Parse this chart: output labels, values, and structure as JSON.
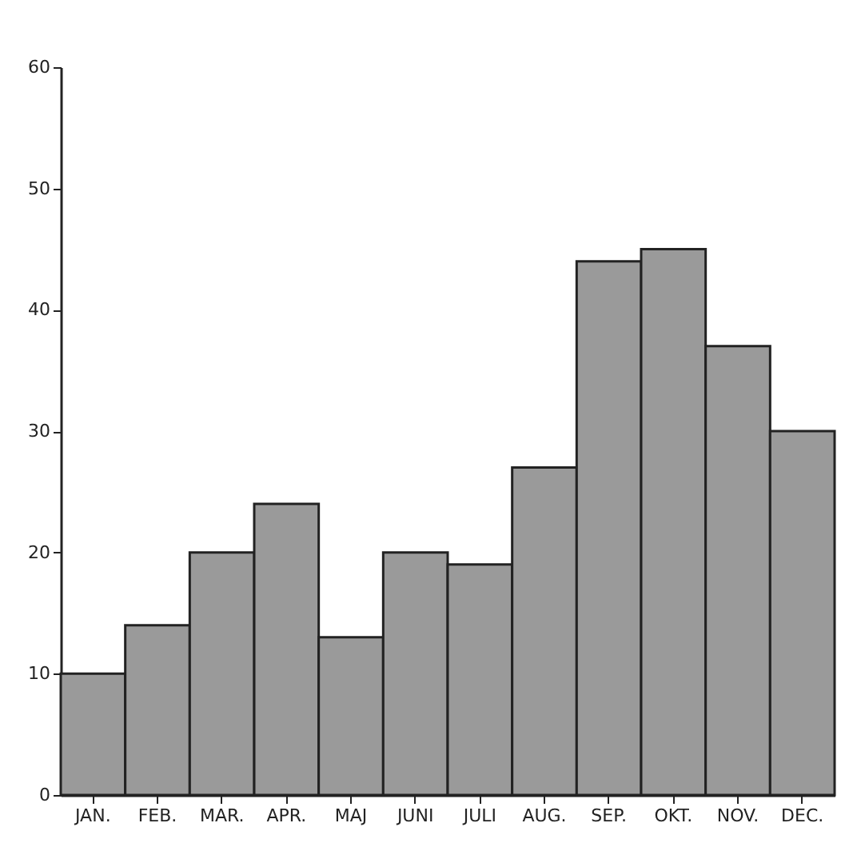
{
  "chart_data": {
    "type": "bar",
    "categories": [
      "JAN.",
      "FEB.",
      "MAR.",
      "APR.",
      "MAJ",
      "JUNI",
      "JULI",
      "AUG.",
      "SEP.",
      "OKT.",
      "NOV.",
      "DEC."
    ],
    "values": [
      10,
      14,
      20,
      24,
      13,
      20,
      19,
      27,
      44,
      45,
      37,
      30
    ],
    "color": "#9a9a9a",
    "ylim": [
      0,
      60
    ],
    "yticks": [
      0,
      10,
      20,
      30,
      40,
      50,
      60
    ],
    "grid": false
  }
}
